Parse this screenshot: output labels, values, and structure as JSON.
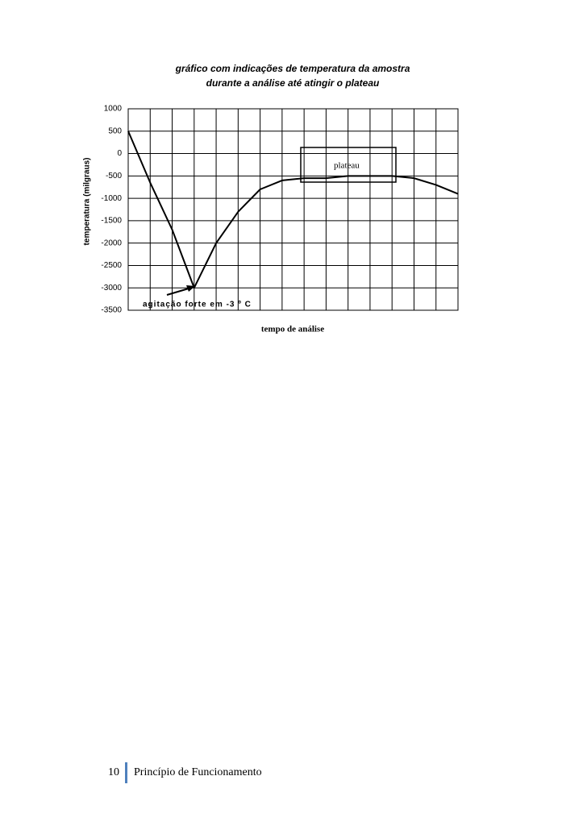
{
  "chart_data": {
    "type": "line",
    "title": [
      "gráfico com indicações de temperatura da amostra",
      "durante a análise até atingir o plateau"
    ],
    "y_label": "temperatura (milgraus)",
    "x_label": "tempo de análise",
    "annotations": [
      "plateau",
      "agitação forte em -3 º C"
    ],
    "categories": [
      null,
      null,
      null,
      null,
      null,
      null,
      null,
      null,
      null,
      null,
      null,
      null,
      null,
      null,
      null,
      null
    ],
    "series": [
      {
        "name": null,
        "color": "#000000",
        "values": [
          500,
          -650,
          -1700,
          -3000,
          -2000,
          -1300,
          -800,
          -600,
          -550,
          -550,
          -500,
          -500,
          -500,
          -550,
          -700,
          -900
        ]
      }
    ],
    "ylim": [
      -3500,
      1000
    ],
    "yticks": [
      1000,
      500,
      0,
      -500,
      -1000,
      -1500,
      -2000,
      -2500,
      -3000,
      -3500
    ],
    "grid": true
  },
  "footer": {
    "page": "10",
    "text": "Princípio de Funcionamento"
  }
}
